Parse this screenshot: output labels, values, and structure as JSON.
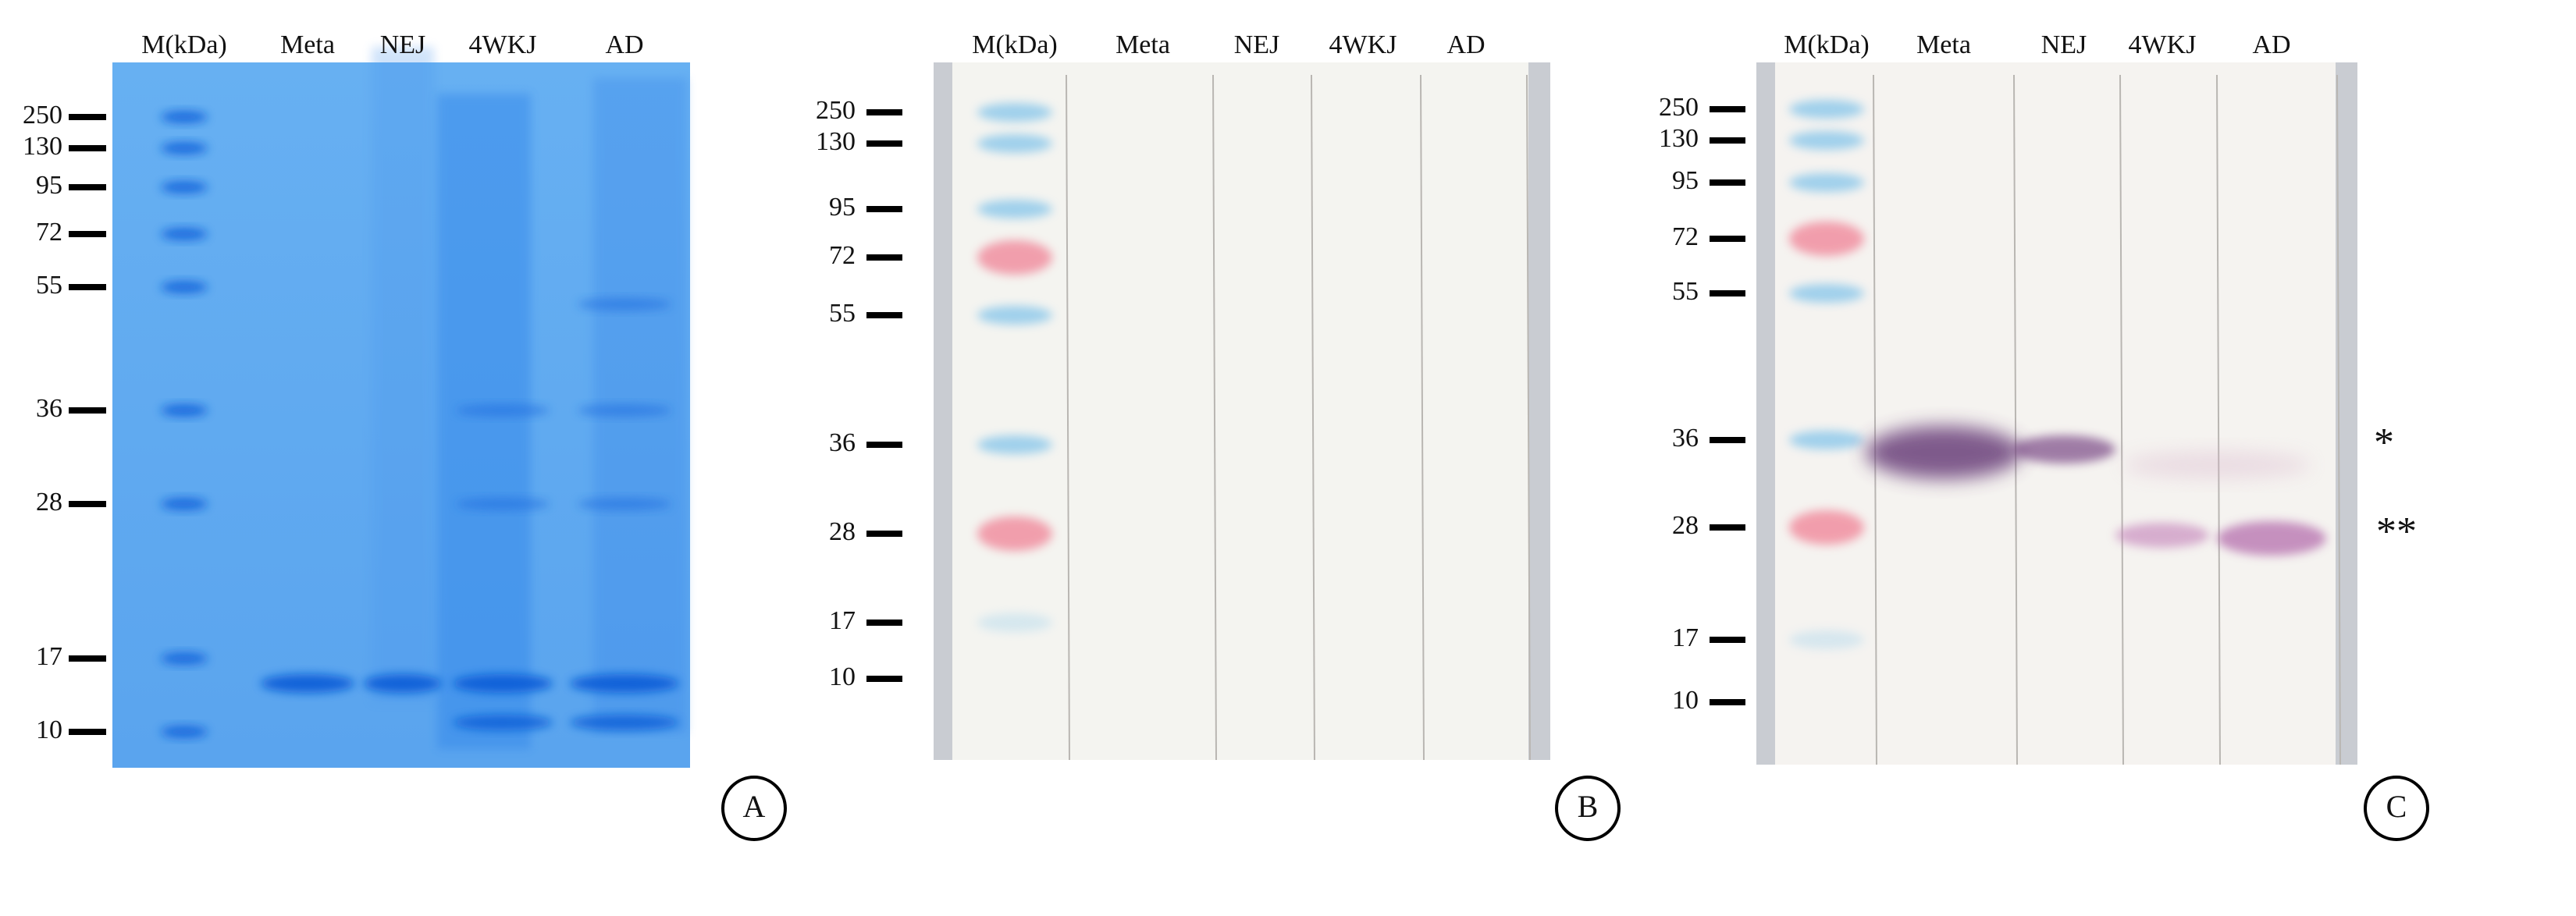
{
  "panels": [
    {
      "letter": "A",
      "lanes": [
        "M(kDa)",
        "Meta",
        "NEJ",
        "4WKJ",
        "AD"
      ],
      "markers": [
        "250",
        "130",
        "95",
        "72",
        "55",
        "36",
        "28",
        "17",
        "10"
      ]
    },
    {
      "letter": "B",
      "lanes": [
        "M(kDa)",
        "Meta",
        "NEJ",
        "4WKJ",
        "AD"
      ],
      "markers": [
        "250",
        "130",
        "95",
        "72",
        "55",
        "36",
        "28",
        "17",
        "10"
      ]
    },
    {
      "letter": "C",
      "lanes": [
        "M(kDa)",
        "Meta",
        "NEJ",
        "4WKJ",
        "AD"
      ],
      "markers": [
        "250",
        "130",
        "95",
        "72",
        "55",
        "36",
        "28",
        "17",
        "10"
      ],
      "annotations": [
        "*",
        "**"
      ]
    }
  ]
}
